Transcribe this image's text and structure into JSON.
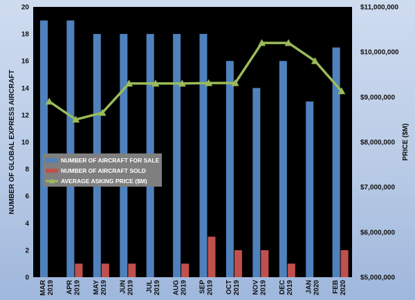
{
  "chart_data": {
    "type": "bar",
    "categories": [
      "MAR 2019",
      "APR 2019",
      "MAY 2019",
      "JUN 2019",
      "JUL 2019",
      "AUG 2019",
      "SEP 2019",
      "OCT 2019",
      "NOV 2019",
      "DEC 2019",
      "JAN 2020",
      "FEB 2020"
    ],
    "category_lines": [
      [
        "MAR",
        "2019"
      ],
      [
        "APR",
        "2019"
      ],
      [
        "MAY",
        "2019"
      ],
      [
        "JUN",
        "2019"
      ],
      [
        "JUL",
        "2019"
      ],
      [
        "AUG",
        "2019"
      ],
      [
        "SEP",
        "2019"
      ],
      [
        "OCT",
        "2019"
      ],
      [
        "NOV",
        "2019"
      ],
      [
        "DEC",
        "2019"
      ],
      [
        "JAN",
        "2020"
      ],
      [
        "FEB",
        "2020"
      ]
    ],
    "series": [
      {
        "name": "NUMBER OF AIRCRAFT FOR SALE",
        "type": "bar",
        "axis": "left",
        "color": "#4f81bd",
        "values": [
          19,
          19,
          18,
          18,
          18,
          18,
          18,
          16,
          14,
          16,
          13,
          17
        ]
      },
      {
        "name": "NUMBER OF AIRCRAFT SOLD",
        "type": "bar",
        "axis": "left",
        "color": "#c0504d",
        "values": [
          0,
          1,
          1,
          1,
          0,
          1,
          3,
          2,
          2,
          1,
          0,
          2
        ]
      },
      {
        "name": "AVERAGE ASKING PRICE ($M)",
        "type": "line",
        "axis": "right",
        "color": "#9bbb59",
        "values": [
          8900000,
          8500000,
          8650000,
          9300000,
          9300000,
          9300000,
          9310000,
          9310000,
          10200000,
          10200000,
          9800000,
          9130000
        ]
      }
    ],
    "ylabel": "NUMBER OF GLOBAL EXPRESS AIRCRAFT",
    "y2label": "PRICE ($M)",
    "ylim": [
      0,
      20
    ],
    "yticks": [
      "0",
      "2",
      "4",
      "6",
      "8",
      "10",
      "12",
      "14",
      "16",
      "18",
      "20"
    ],
    "y2lim": [
      5000000,
      11000000
    ],
    "y2ticks": [
      "$5,000,000",
      "$6,000,000",
      "$7,000,000",
      "$8,000,000",
      "$9,000,000",
      "$10,000,000",
      "$11,000,000"
    ],
    "legend_position": "middle-left",
    "plot_background": "#000000",
    "grid": false
  }
}
